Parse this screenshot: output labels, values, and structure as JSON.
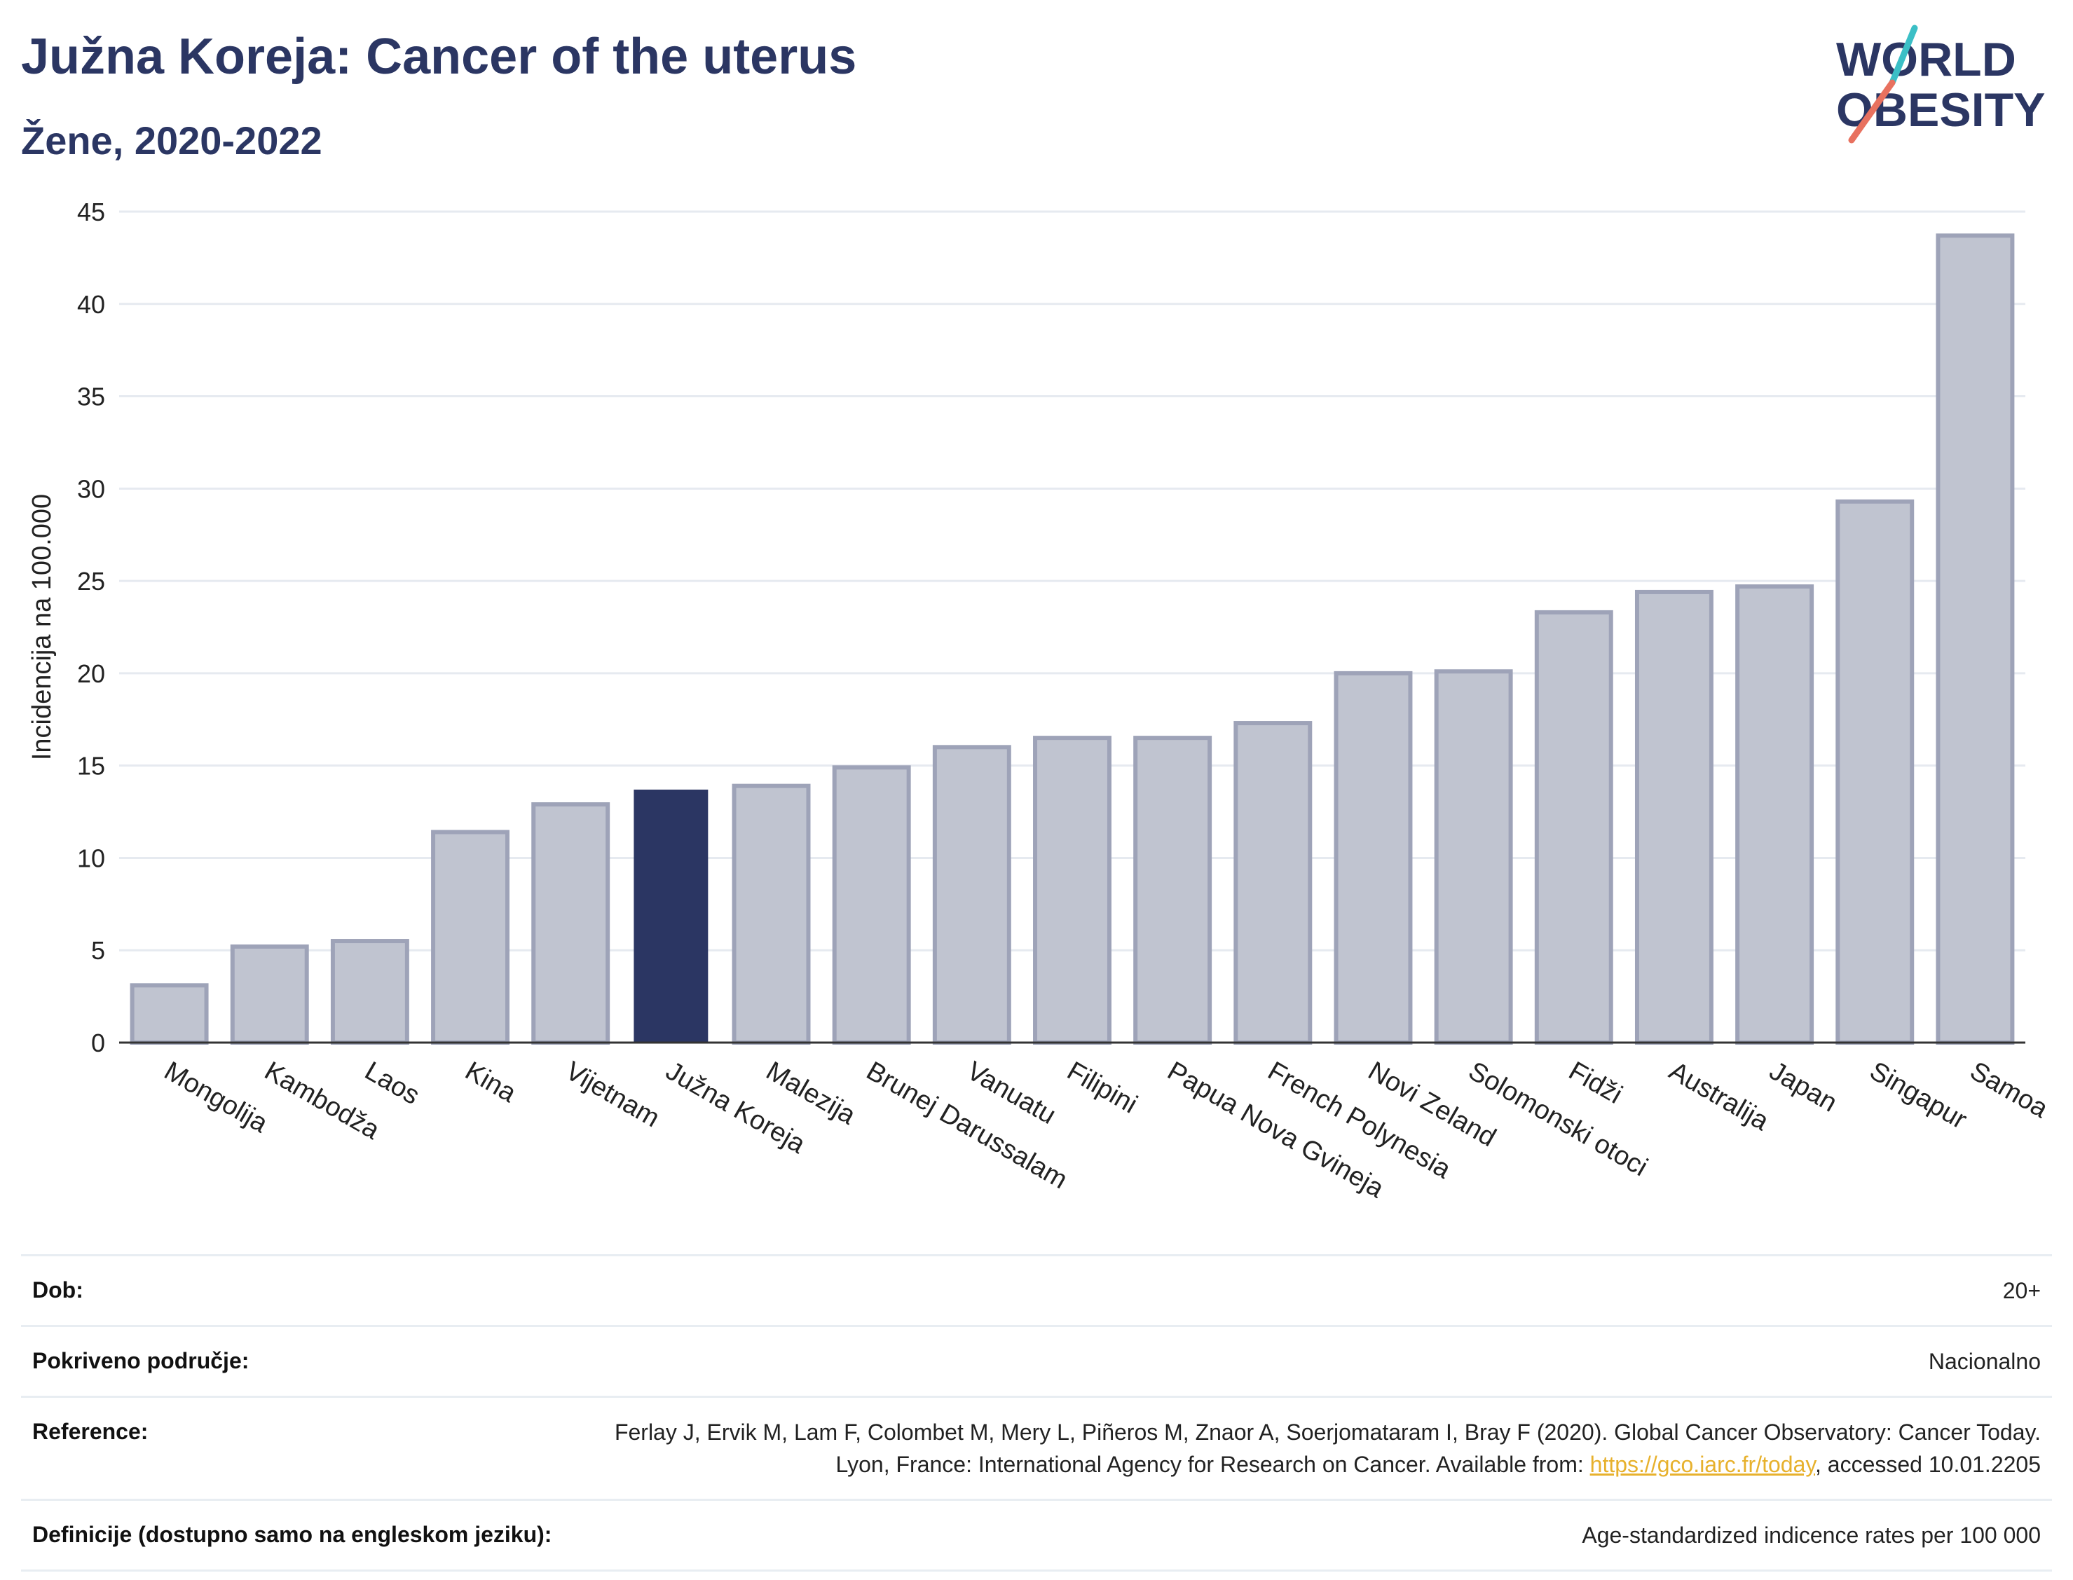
{
  "header": {
    "title": "Južna Koreja: Cancer of the uterus",
    "subtitle": "Žene, 2020-2022"
  },
  "logo": {
    "line1": "WORLD",
    "line2": "OBESITY",
    "colors": {
      "text": "#2b3663",
      "slash_teal": "#3bbfc6",
      "slash_coral": "#e8715f"
    }
  },
  "colors": {
    "highlight_bar": "#2b3663",
    "other_bar_fill": "#c0c4d0",
    "other_bar_stroke": "#9ea3b8",
    "grid": "#e6eaf0",
    "axis": "#333333"
  },
  "chart_data": {
    "type": "bar",
    "ylabel": "Incidencija na 100.000",
    "ylim": [
      0,
      45
    ],
    "yticks": [
      0,
      5,
      10,
      15,
      20,
      25,
      30,
      35,
      40,
      45
    ],
    "grid": true,
    "highlight": "Južna Koreja",
    "categories": [
      "Mongolija",
      "Kambodža",
      "Laos",
      "Kina",
      "Vijetnam",
      "Južna Koreja",
      "Malezija",
      "Brunej Darussalam",
      "Vanuatu",
      "Filipini",
      "Papua Nova Gvineja",
      "French Polynesia",
      "Novi Zeland",
      "Solomonski otoci",
      "Fidži",
      "Australija",
      "Japan",
      "Singapur",
      "Samoa"
    ],
    "values": [
      3.1,
      5.2,
      5.5,
      11.4,
      12.9,
      13.7,
      13.9,
      14.9,
      16.0,
      16.5,
      16.5,
      17.3,
      20.0,
      20.1,
      23.3,
      24.4,
      24.7,
      29.3,
      43.7
    ]
  },
  "info": [
    {
      "label": "Dob:",
      "value": "20+"
    },
    {
      "label": "Pokriveno područje:",
      "value": "Nacionalno"
    },
    {
      "label": "Reference:",
      "value_before": "Ferlay J, Ervik M, Lam F, Colombet M, Mery L, Piñeros M, Znaor A, Soerjomataram I, Bray F (2020). Global Cancer Observatory: Cancer Today. Lyon, France: International Agency for Research on Cancer. Available from: ",
      "link": "https://gco.iarc.fr/today",
      "value_after": ", accessed 10.01.2205"
    },
    {
      "label": "Definicije (dostupno samo na engleskom jeziku):",
      "value": "Age-standardized indicence rates per 100 000"
    }
  ]
}
